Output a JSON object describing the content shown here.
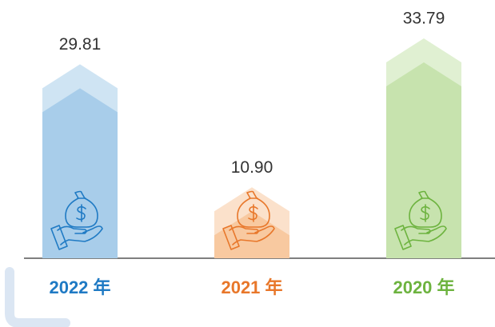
{
  "chart_data": {
    "type": "bar",
    "categories": [
      "2022 年",
      "2021 年",
      "2020 年"
    ],
    "values": [
      29.81,
      10.9,
      33.79
    ],
    "value_labels": [
      "29.81",
      "10.90",
      "33.79"
    ],
    "colors": [
      "#a8cdea",
      "#f8c9a0",
      "#c7e3ae"
    ],
    "label_colors": [
      "#1f7ac4",
      "#e8772a",
      "#6db33f"
    ],
    "ylim": [
      0,
      36
    ]
  }
}
